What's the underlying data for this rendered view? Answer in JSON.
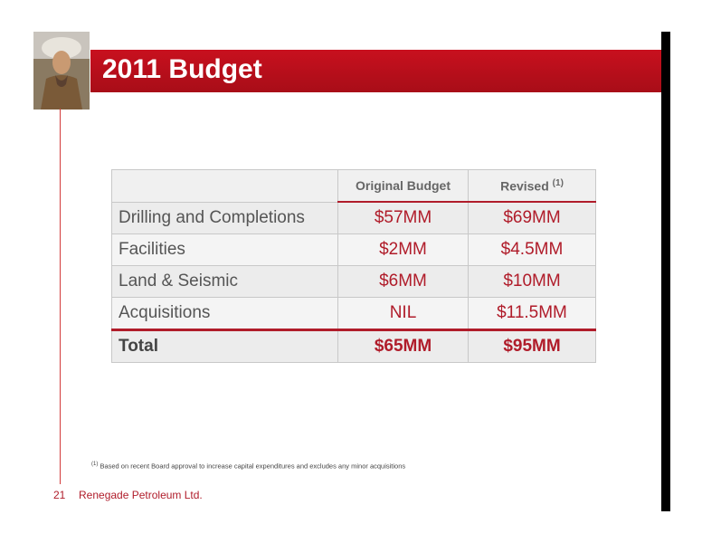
{
  "header": {
    "title": "2011 Budget"
  },
  "table": {
    "columns": [
      "Original Budget",
      "Revised"
    ],
    "revised_note": "(1)",
    "rows": [
      [
        "Drilling and Completions",
        "$57MM",
        "$69MM"
      ],
      [
        "Facilities",
        "$2MM",
        "$4.5MM"
      ],
      [
        "Land & Seismic",
        "$6MM",
        "$10MM"
      ],
      [
        "Acquisitions",
        "NIL",
        "$11.5MM"
      ]
    ],
    "total": [
      "Total",
      "$65MM",
      "$95MM"
    ]
  },
  "footnote": {
    "marker": "(1)",
    "text": "Based on recent Board approval to increase capital expenditures and excludes any minor acquisitions"
  },
  "footer": {
    "page": "21",
    "company": "Renegade Petroleum Ltd."
  }
}
